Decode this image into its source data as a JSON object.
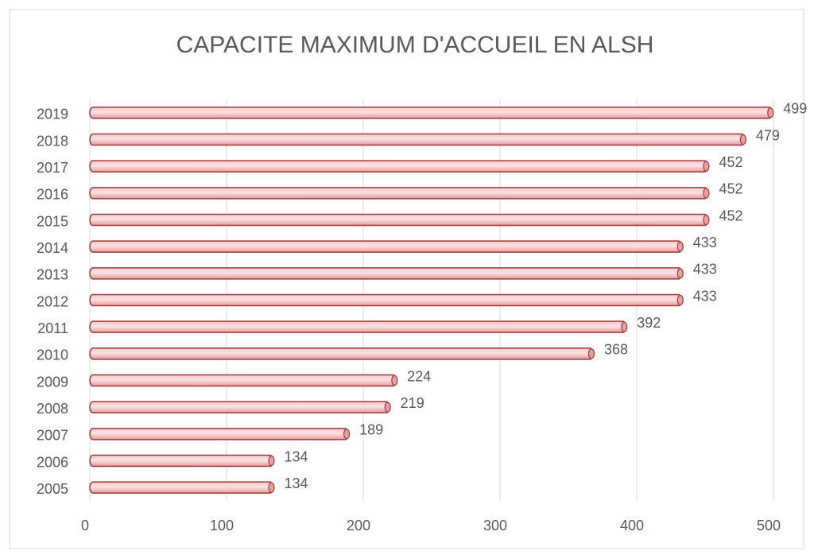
{
  "chart_data": {
    "type": "bar",
    "orientation": "horizontal",
    "title": "CAPACITE MAXIMUM D'ACCUEIL EN ALSH",
    "categories": [
      "2005",
      "2006",
      "2007",
      "2008",
      "2009",
      "2010",
      "2011",
      "2012",
      "2013",
      "2014",
      "2015",
      "2016",
      "2017",
      "2018",
      "2019"
    ],
    "values": [
      134,
      134,
      189,
      219,
      224,
      368,
      392,
      433,
      433,
      433,
      452,
      452,
      452,
      479,
      499
    ],
    "color": "#f2aeae",
    "xlim": [
      0,
      500
    ],
    "xticks": [
      0,
      100,
      200,
      300,
      400,
      500
    ],
    "grid": true
  }
}
